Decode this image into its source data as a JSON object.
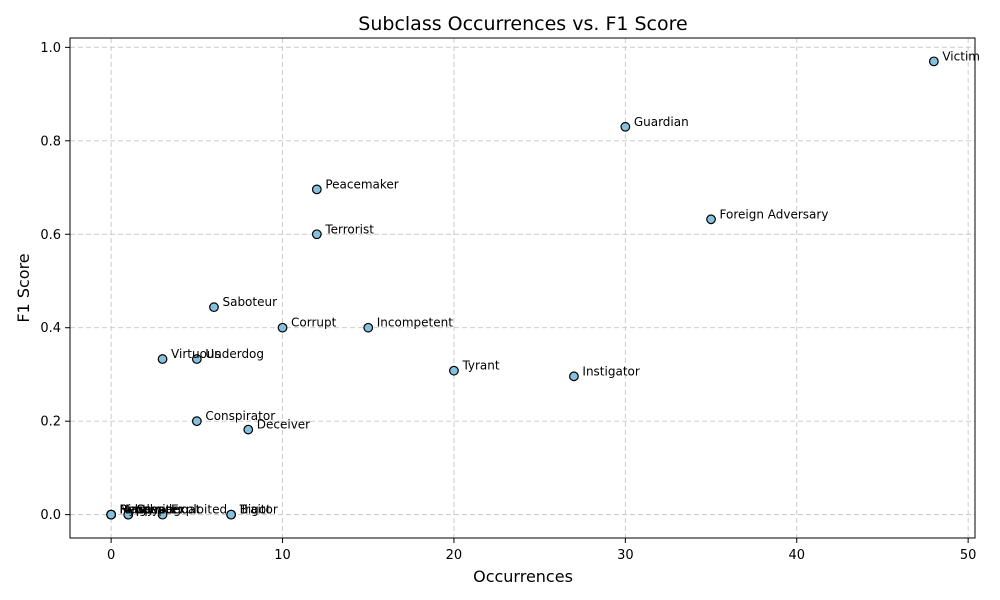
{
  "chart_data": {
    "type": "scatter",
    "title": "Subclass Occurrences vs. F1 Score",
    "xlabel": "Occurrences",
    "ylabel": "F1 Score",
    "xlim": [
      -2.4,
      50.4
    ],
    "ylim": [
      -0.05,
      1.02
    ],
    "xticks": [
      0,
      10,
      20,
      30,
      40,
      50
    ],
    "yticks": [
      0.0,
      0.2,
      0.4,
      0.6,
      0.8,
      1.0
    ],
    "grid": true,
    "point_color": "#87c0dc",
    "edge_color": "#000000",
    "points": [
      {
        "label": "Victim",
        "x": 48,
        "y": 0.97
      },
      {
        "label": "Guardian",
        "x": 30,
        "y": 0.83
      },
      {
        "label": "Peacemaker",
        "x": 12,
        "y": 0.696
      },
      {
        "label": "Foreign Adversary",
        "x": 35,
        "y": 0.632
      },
      {
        "label": "Terrorist",
        "x": 12,
        "y": 0.6
      },
      {
        "label": "Saboteur",
        "x": 6,
        "y": 0.444
      },
      {
        "label": "Corrupt",
        "x": 10,
        "y": 0.4
      },
      {
        "label": "Incompetent",
        "x": 15,
        "y": 0.4
      },
      {
        "label": "Virtuous",
        "x": 3,
        "y": 0.333
      },
      {
        "label": "Underdog",
        "x": 5,
        "y": 0.333
      },
      {
        "label": "Tyrant",
        "x": 20,
        "y": 0.308
      },
      {
        "label": "Instigator",
        "x": 27,
        "y": 0.296
      },
      {
        "label": "Conspirator",
        "x": 5,
        "y": 0.2
      },
      {
        "label": "Deceiver",
        "x": 8,
        "y": 0.182
      },
      {
        "label": "Bigot",
        "x": 7,
        "y": 0.0
      },
      {
        "label": "Traitor",
        "x": 7,
        "y": 0.0
      },
      {
        "label": "Exploited",
        "x": 3,
        "y": 0.0
      },
      {
        "label": "Scapegoat",
        "x": 1,
        "y": 0.0
      },
      {
        "label": "Spy",
        "x": 1,
        "y": 0.0
      },
      {
        "label": "Rebel",
        "x": 0,
        "y": 0.0
      },
      {
        "label": "Martyr",
        "x": 0,
        "y": 0.0
      },
      {
        "label": "Hypocrite",
        "x": 0,
        "y": 0.0
      },
      {
        "label": "Ringleader",
        "x": 0,
        "y": 0.0
      }
    ]
  }
}
